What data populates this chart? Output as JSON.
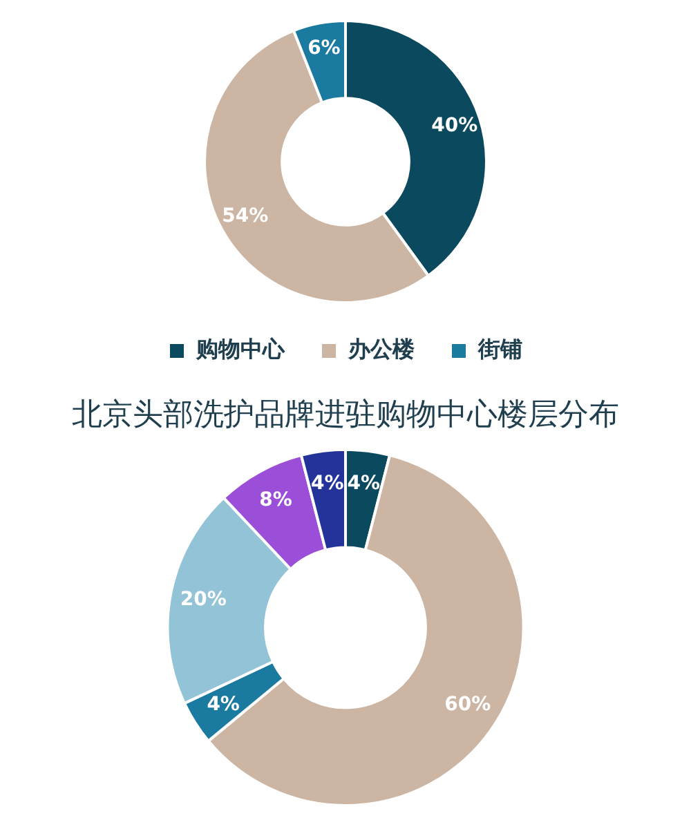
{
  "chart_data": [
    {
      "type": "donut",
      "categories": [
        "购物中心",
        "办公楼",
        "街铺"
      ],
      "values": [
        40,
        54,
        6
      ],
      "colors": [
        "#0b4a5e",
        "#cdb5a3",
        "#1a7aa0"
      ],
      "value_labels": [
        "40%",
        "54%",
        "6%"
      ],
      "legend": "bottom"
    },
    {
      "type": "donut",
      "title": "北京头部洗护品牌进驻购物中心楼层分布",
      "categories": [
        null,
        null,
        null,
        null,
        null,
        null
      ],
      "values": [
        4,
        60,
        4,
        20,
        8,
        4
      ],
      "colors": [
        "#0b4a5e",
        "#cdb5a3",
        "#1a7aa0",
        "#93c3d6",
        "#9b4fd8",
        "#23339a"
      ],
      "value_labels": [
        "4%",
        "60%",
        "4%",
        "20%",
        "8%",
        "4%"
      ]
    }
  ]
}
